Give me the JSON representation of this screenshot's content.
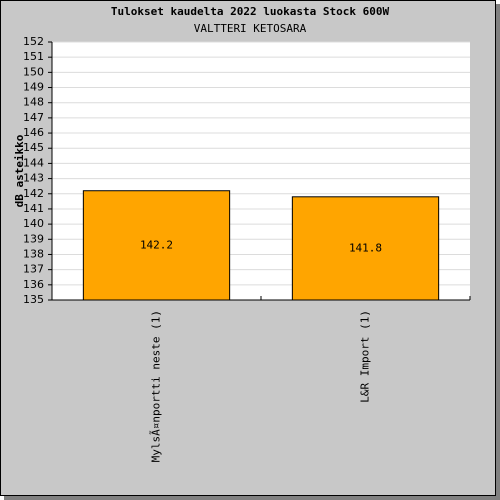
{
  "chart_data": {
    "type": "bar",
    "title": "Tulokset kaudelta 2022 luokasta Stock 600W",
    "subtitle": "VALTTERI KETOSARA",
    "y_label": "dB asteikko",
    "categories": [
      "MylsÃ¤nportti neste (1)",
      "L&R Import (1)"
    ],
    "values": [
      142.2,
      141.8
    ],
    "color": "#ffa500",
    "ylim": [
      135,
      152
    ],
    "yticks": [
      135,
      136,
      137,
      138,
      139,
      140,
      141,
      142,
      143,
      144,
      145,
      146,
      147,
      148,
      149,
      150,
      151,
      152
    ],
    "grid": true
  }
}
